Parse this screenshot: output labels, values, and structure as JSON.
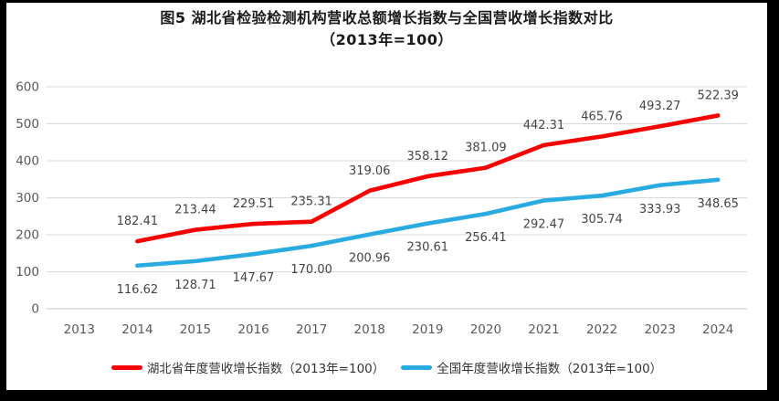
{
  "title": {
    "line1": "图5 湖北省检验检测机构营收总额增长指数与全国营收增长指数对比",
    "line2": "（2013年=100）"
  },
  "colors": {
    "hubei_red": "#F60000",
    "national_blue": "#29ABE2",
    "grid": "#D9D9D9",
    "axis_line": "#C6C6C6",
    "axis_text": "#595959",
    "data_label": "#444444",
    "background": "#FFFFFF",
    "frame": "#000000"
  },
  "chart_data": {
    "type": "line",
    "categories": [
      "2013",
      "2014",
      "2015",
      "2016",
      "2017",
      "2018",
      "2019",
      "2020",
      "2021",
      "2022",
      "2023",
      "2024"
    ],
    "series": [
      {
        "name": "湖北省年度营收增长指数（2013年=100）",
        "color": "#F60000",
        "start_category": "2014",
        "values": [
          182.41,
          213.44,
          229.51,
          235.31,
          319.06,
          358.12,
          381.09,
          442.31,
          465.76,
          493.27,
          522.39
        ],
        "labels": [
          "182.41",
          "213.44",
          "229.51",
          "235.31",
          "319.06",
          "358.12",
          "381.09",
          "442.31",
          "465.76",
          "493.27",
          "522.39"
        ],
        "label_position": "above"
      },
      {
        "name": "全国年度营收增长指数（2013年=100）",
        "color": "#29ABE2",
        "start_category": "2014",
        "values": [
          116.62,
          128.71,
          147.67,
          170.0,
          200.96,
          230.61,
          256.41,
          292.47,
          305.74,
          333.93,
          348.65
        ],
        "labels": [
          "116.62",
          "128.71",
          "147.67",
          "170.00",
          "200.96",
          "230.61",
          "256.41",
          "292.47",
          "305.74",
          "333.93",
          "348.65"
        ],
        "label_position": "below"
      }
    ],
    "ylim": [
      0,
      600
    ],
    "ytick_step": 100,
    "yticks": [
      "0",
      "100",
      "200",
      "300",
      "400",
      "500",
      "600"
    ],
    "grid": true,
    "legend_position": "bottom"
  }
}
